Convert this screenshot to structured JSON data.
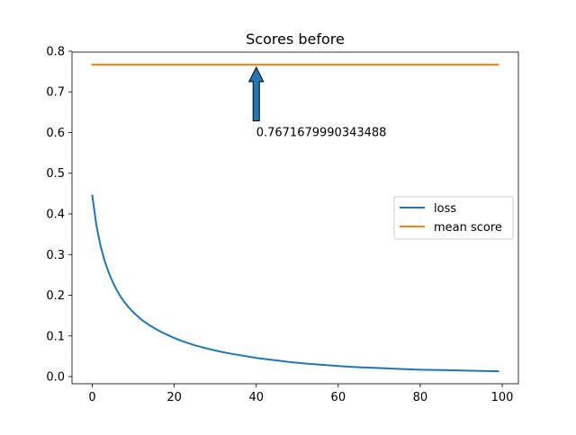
{
  "chart_data": {
    "type": "line",
    "title": "Scores before",
    "xlabel": "",
    "ylabel": "",
    "xlim": [
      -4.95,
      103.95
    ],
    "ylim": [
      -0.0176,
      0.7977
    ],
    "xticks": [
      0,
      20,
      40,
      60,
      80,
      100
    ],
    "yticks": [
      0.0,
      0.1,
      0.2,
      0.3,
      0.4,
      0.5,
      0.6,
      0.7,
      0.8
    ],
    "xtick_labels": [
      "0",
      "20",
      "40",
      "60",
      "80",
      "100"
    ],
    "ytick_labels": [
      "0.0",
      "0.1",
      "0.2",
      "0.3",
      "0.4",
      "0.5",
      "0.6",
      "0.7",
      "0.8"
    ],
    "grid": false,
    "legend_position": "center-right",
    "series": [
      {
        "name": "loss",
        "color": "#1f77b4",
        "x": [
          0,
          1,
          2,
          3,
          4,
          5,
          6,
          7,
          8,
          9,
          10,
          12,
          14,
          16,
          18,
          20,
          22,
          25,
          28,
          31,
          34,
          37,
          40,
          44,
          48,
          52,
          56,
          60,
          65,
          70,
          75,
          80,
          85,
          90,
          95,
          99
        ],
        "y": [
          0.445,
          0.372,
          0.322,
          0.285,
          0.256,
          0.232,
          0.212,
          0.195,
          0.181,
          0.169,
          0.158,
          0.14,
          0.126,
          0.114,
          0.104,
          0.095,
          0.087,
          0.077,
          0.069,
          0.062,
          0.056,
          0.051,
          0.046,
          0.041,
          0.036,
          0.032,
          0.029,
          0.026,
          0.023,
          0.021,
          0.019,
          0.017,
          0.016,
          0.015,
          0.014,
          0.013
        ]
      },
      {
        "name": "mean score",
        "color": "#ff7f0e",
        "x": [
          0,
          99
        ],
        "y": [
          0.7671679990343488,
          0.7671679990343488
        ]
      }
    ],
    "annotation": {
      "text": "0.7671679990343488",
      "arrow_tip": [
        40,
        0.7671679990343488
      ],
      "text_anchor": [
        40,
        0.6
      ],
      "arrow_color": "#1f77b4"
    }
  }
}
